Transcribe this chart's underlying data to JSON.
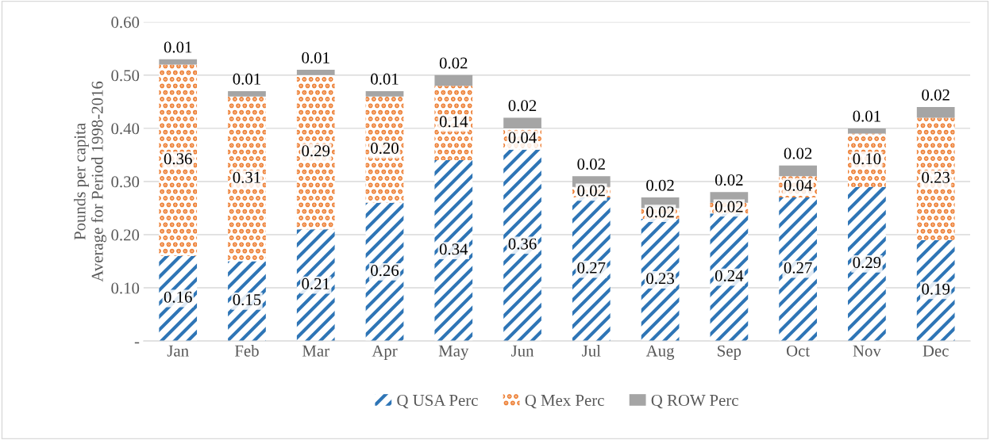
{
  "chart_data": {
    "type": "bar",
    "stacked": true,
    "ylabel": "Pounds per capita\nAverage for Period 1998-2016",
    "categories": [
      "Jan",
      "Feb",
      "Mar",
      "Apr",
      "May",
      "Jun",
      "Jul",
      "Aug",
      "Sep",
      "Oct",
      "Nov",
      "Dec"
    ],
    "series": [
      {
        "name": "Q USA Perc",
        "color": "#2e75b6",
        "values": [
          0.16,
          0.15,
          0.21,
          0.26,
          0.34,
          0.36,
          0.27,
          0.23,
          0.24,
          0.27,
          0.29,
          0.19
        ],
        "value_labels": [
          "0.16",
          "0.15",
          "0.21",
          "0.26",
          "0.34",
          "0.36",
          "0.27",
          "0.23",
          "0.24",
          "0.27",
          "0.29",
          "0.19"
        ]
      },
      {
        "name": "Q Mex Perc",
        "color": "#ed7d31",
        "values": [
          0.36,
          0.31,
          0.29,
          0.2,
          0.14,
          0.04,
          0.02,
          0.02,
          0.02,
          0.04,
          0.1,
          0.23
        ],
        "value_labels": [
          "0.36",
          "0.31",
          "0.29",
          "0.20",
          "0.14",
          "0.04",
          "0.02",
          "0.02",
          "0.02",
          "0.04",
          "0.10",
          "0.23"
        ]
      },
      {
        "name": "Q ROW Perc",
        "color": "#a5a5a5",
        "values": [
          0.01,
          0.01,
          0.01,
          0.01,
          0.02,
          0.02,
          0.02,
          0.02,
          0.02,
          0.02,
          0.01,
          0.02
        ],
        "value_labels": [
          "0.01",
          "0.01",
          "0.01",
          "0.01",
          "0.02",
          "0.02",
          "0.02",
          "0.02",
          "0.02",
          "0.02",
          "0.01",
          "0.02"
        ]
      }
    ],
    "ylim": [
      0,
      0.6
    ],
    "yticks": [
      {
        "value": 0,
        "label": "-"
      },
      {
        "value": 0.1,
        "label": "0.10"
      },
      {
        "value": 0.2,
        "label": "0.20"
      },
      {
        "value": 0.3,
        "label": "0.30"
      },
      {
        "value": 0.4,
        "label": "0.40"
      },
      {
        "value": 0.5,
        "label": "0.50"
      },
      {
        "value": 0.6,
        "label": "0.60"
      }
    ],
    "grid": "y",
    "legend": "bottom"
  }
}
